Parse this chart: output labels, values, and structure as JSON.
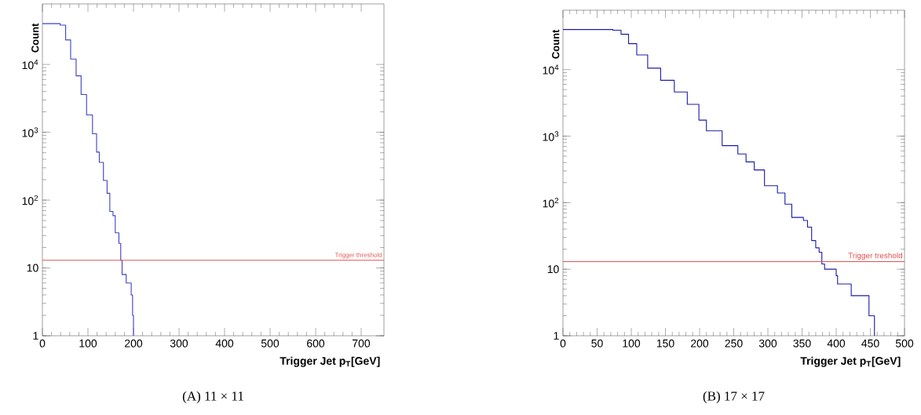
{
  "chart_data": [
    {
      "type": "step",
      "xlabel": "Trigger Jet p$_{T}$[GeV]",
      "ylabel": "Count",
      "log": "y",
      "xlim": [
        0,
        750
      ],
      "ylim": [
        1,
        78000
      ],
      "xticks": [
        0,
        100,
        200,
        300,
        400,
        500,
        600,
        700
      ],
      "yticks": [
        1,
        10,
        {
          "value": 100,
          "label": "10$^{2}$"
        },
        {
          "value": 1000,
          "label": "10$^{3}$"
        },
        {
          "value": 10000,
          "label": "10$^{4}$"
        }
      ],
      "series": [
        {
          "color": "#4040c8",
          "x": [
            0,
            31,
            39,
            51,
            62,
            74,
            85,
            97,
            110,
            119,
            125,
            134,
            142,
            148,
            155,
            160,
            168,
            172,
            175,
            184,
            195,
            198,
            200
          ],
          "values": [
            40000,
            40000,
            38000,
            23000,
            12000,
            6800,
            3600,
            1800,
            950,
            510,
            360,
            195,
            126,
            68,
            59,
            33,
            23,
            13,
            8,
            6,
            4,
            2,
            1
          ]
        }
      ],
      "ref_lines": [
        {
          "axis": "y",
          "value": 13,
          "label": "Trigger threshold",
          "color": "#e05555"
        }
      ],
      "annotations": [
        "(A) 11 × 11"
      ]
    },
    {
      "type": "step",
      "xlabel": "Trigger Jet p$_{T}$[GeV]",
      "ylabel": "Count",
      "log": "y",
      "xlim": [
        0,
        500
      ],
      "ylim": [
        1,
        78000
      ],
      "xticks": [
        0,
        50,
        100,
        150,
        200,
        250,
        300,
        350,
        400,
        450,
        500
      ],
      "yticks": [
        1,
        10,
        {
          "value": 100,
          "label": "10$^{2}$"
        },
        {
          "value": 1000,
          "label": "10$^{3}$"
        },
        {
          "value": 10000,
          "label": "10$^{4}$"
        }
      ],
      "series": [
        {
          "color": "#1c1caa",
          "x": [
            0,
            64,
            73,
            85,
            96,
            108,
            124,
            143,
            163,
            182,
            199,
            210,
            233,
            256,
            268,
            280,
            295,
            314,
            325,
            335,
            352,
            358,
            364,
            370,
            375,
            379,
            383,
            400,
            402,
            422,
            448,
            456
          ],
          "values": [
            40000,
            40000,
            39000,
            34000,
            24500,
            16600,
            10500,
            6900,
            4600,
            3000,
            1740,
            1200,
            720,
            540,
            410,
            310,
            180,
            140,
            95,
            60,
            54,
            43,
            27,
            21,
            18,
            12,
            10,
            8,
            6,
            4,
            2,
            1
          ]
        }
      ],
      "ref_lines": [
        {
          "axis": "y",
          "value": 13,
          "label": "Trigger treshold",
          "color": "#e05555"
        }
      ],
      "annotations": [
        "(B) 17 × 17"
      ]
    }
  ]
}
